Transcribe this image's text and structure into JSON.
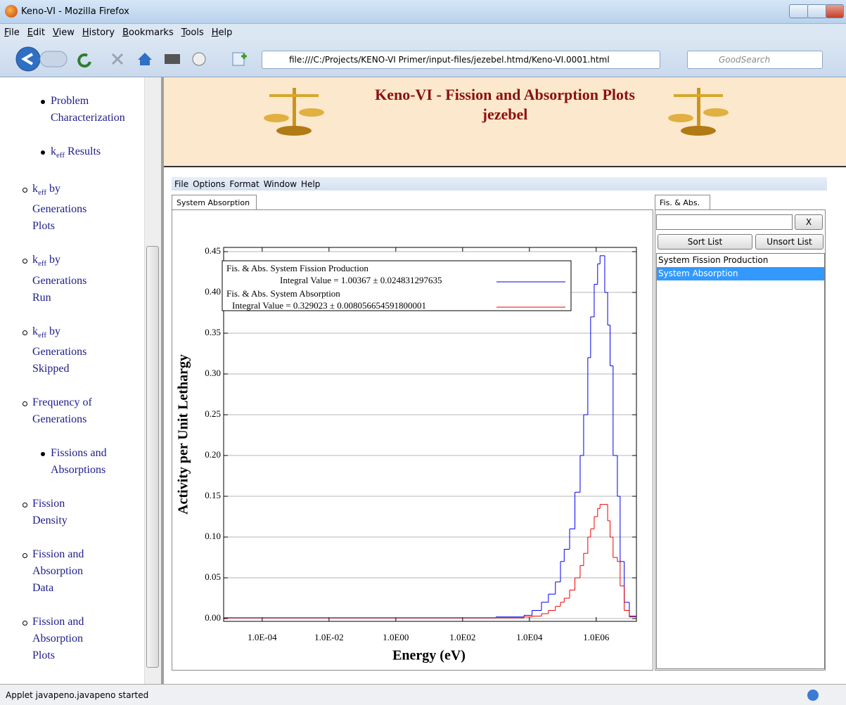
{
  "browser": {
    "title": "Keno-VI - Mozilla Firefox",
    "menu": [
      "File",
      "Edit",
      "View",
      "History",
      "Bookmarks",
      "Tools",
      "Help"
    ],
    "url": "file:///C:/Projects/KENO-VI Primer/input-files/jezebel.htmd/Keno-VI.0001.html",
    "search_placeholder": "GoodSearch",
    "status": "Applet javapeno.javapeno started"
  },
  "sidebar": {
    "items": [
      {
        "text": "Problem Characterization"
      },
      {
        "pre": "k",
        "sub": "eff",
        "post": " Results",
        "children": [
          {
            "pre": "k",
            "sub": "eff",
            "post": " by Generations Plots"
          },
          {
            "pre": "k",
            "sub": "eff",
            "post": " by Generations Run"
          },
          {
            "pre": "k",
            "sub": "eff",
            "post": " by Generations Skipped"
          },
          {
            "text": "Frequency of Generations"
          }
        ]
      },
      {
        "text": "Fissions and Absorptions",
        "children": [
          {
            "text": "Fission Density"
          },
          {
            "text": "Fission and Absorption Data"
          },
          {
            "text": "Fission and Absorption Plots"
          }
        ]
      }
    ]
  },
  "header": {
    "title": "Keno-VI - Fission and Absorption Plots",
    "subtitle": "jezebel"
  },
  "applet": {
    "menu": [
      "File",
      "Options",
      "Format",
      "Window",
      "Help"
    ],
    "tab": "System Absorption",
    "side_tab": "Fis. & Abs.",
    "clear_button": "X",
    "sort_button": "Sort List",
    "unsort_button": "Unsort List",
    "list": [
      "System Fission Production",
      "System Absorption"
    ],
    "selected": 1
  },
  "chart_data": {
    "type": "step",
    "x_label": "Energy (eV)",
    "y_label": "Activity per Unit Lethargy",
    "x_log": true,
    "xlim": [
      7e-06,
      16000000.0
    ],
    "ylim": [
      -0.0034,
      0.4552
    ],
    "xticks": [
      {
        "value": 0.0001,
        "label": "1.0E-04"
      },
      {
        "value": 0.01,
        "label": "1.0E-02"
      },
      {
        "value": 1,
        "label": "1.0E00"
      },
      {
        "value": 100,
        "label": "1.0E02"
      },
      {
        "value": 10000,
        "label": "1.0E04"
      },
      {
        "value": 1000000,
        "label": "1.0E06"
      }
    ],
    "yticks": [
      {
        "value": 0,
        "label": "0.00"
      },
      {
        "value": 0.05,
        "label": "0.05"
      },
      {
        "value": 0.1,
        "label": "0.10"
      },
      {
        "value": 0.15,
        "label": "0.15"
      },
      {
        "value": 0.2,
        "label": "0.20"
      },
      {
        "value": 0.25,
        "label": "0.25"
      },
      {
        "value": 0.3,
        "label": "0.30"
      },
      {
        "value": 0.35,
        "label": "0.35"
      },
      {
        "value": 0.4,
        "label": "0.40"
      },
      {
        "value": 0.45,
        "label": "0.45"
      }
    ],
    "grid": true,
    "x": [
      7e-06,
      1000,
      6900,
      12000,
      23000,
      37000,
      60000,
      85000,
      110000,
      160000,
      230000,
      330000,
      420000,
      560000,
      680000,
      870000,
      1100000,
      1300000,
      1800000,
      2200000,
      2600000,
      3200000,
      4300000,
      5200000,
      6900000,
      9800000
    ],
    "series": [
      {
        "name": "Fis. & Abs. System Fission Production",
        "integral": "Integral Value = 1.00367 ± 0.024831297635",
        "color": "#0000ee",
        "values": [
          0.001,
          0.002,
          0.004,
          0.01,
          0.02,
          0.03,
          0.045,
          0.07,
          0.085,
          0.11,
          0.155,
          0.2,
          0.25,
          0.32,
          0.37,
          0.41,
          0.435,
          0.445,
          0.4,
          0.36,
          0.31,
          0.2,
          0.15,
          0.07,
          0.02,
          0.003
        ]
      },
      {
        "name": "Fis. & Abs. System Absorption",
        "integral": "Integral Value = 0.329023 ± 0.008056654591800001",
        "color": "#ee0000",
        "values": [
          0.001,
          0.001,
          0.002,
          0.003,
          0.006,
          0.01,
          0.015,
          0.02,
          0.025,
          0.035,
          0.05,
          0.065,
          0.08,
          0.1,
          0.11,
          0.125,
          0.135,
          0.14,
          0.14,
          0.12,
          0.1,
          0.075,
          0.07,
          0.04,
          0.01,
          0.002
        ]
      }
    ]
  }
}
